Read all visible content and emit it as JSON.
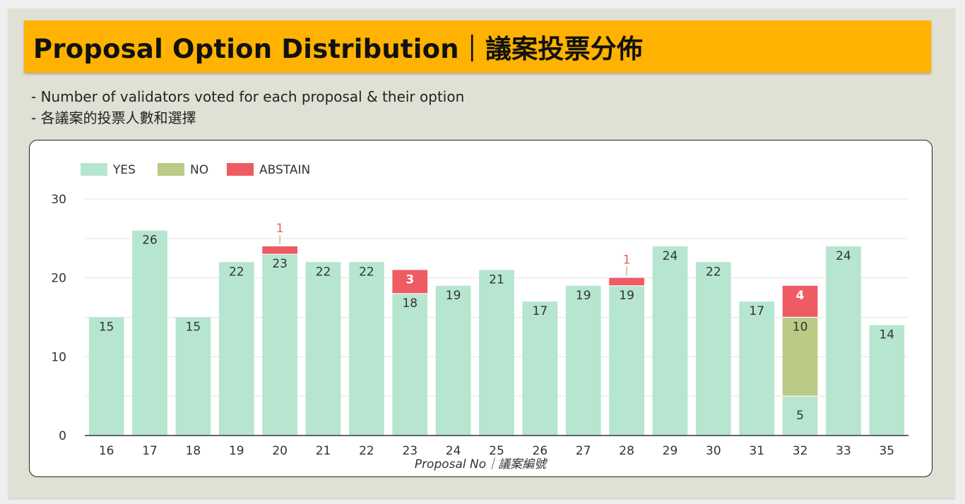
{
  "header": {
    "title": "Proposal Option Distribution｜議案投票分佈"
  },
  "subtitle": {
    "line1": "- Number of validators voted for each proposal & their option",
    "line2": "- 各議案的投票人數和選擇"
  },
  "colors": {
    "yes": "#b6e5d0",
    "no": "#b9cb85",
    "abstain": "#ef5b63"
  },
  "chart_data": {
    "type": "bar",
    "stacked": true,
    "categories": [
      "16",
      "17",
      "18",
      "19",
      "20",
      "21",
      "22",
      "23",
      "24",
      "25",
      "26",
      "27",
      "28",
      "29",
      "30",
      "31",
      "32",
      "33",
      "35"
    ],
    "series": [
      {
        "name": "YES",
        "values": [
          15,
          26,
          15,
          22,
          23,
          22,
          22,
          18,
          19,
          21,
          17,
          19,
          19,
          24,
          22,
          17,
          5,
          24,
          14
        ]
      },
      {
        "name": "NO",
        "values": [
          0,
          0,
          0,
          0,
          0,
          0,
          0,
          0,
          0,
          0,
          0,
          0,
          0,
          0,
          0,
          0,
          10,
          0,
          0
        ]
      },
      {
        "name": "ABSTAIN",
        "values": [
          0,
          0,
          0,
          0,
          1,
          0,
          0,
          3,
          0,
          0,
          0,
          0,
          1,
          0,
          0,
          0,
          4,
          0,
          0
        ]
      }
    ],
    "xlabel": "Proposal No｜議案編號",
    "ylabel": "",
    "yticks": [
      0,
      10,
      20,
      30
    ],
    "ylim": [
      0,
      30
    ],
    "grid": true,
    "legend": "top-left"
  }
}
